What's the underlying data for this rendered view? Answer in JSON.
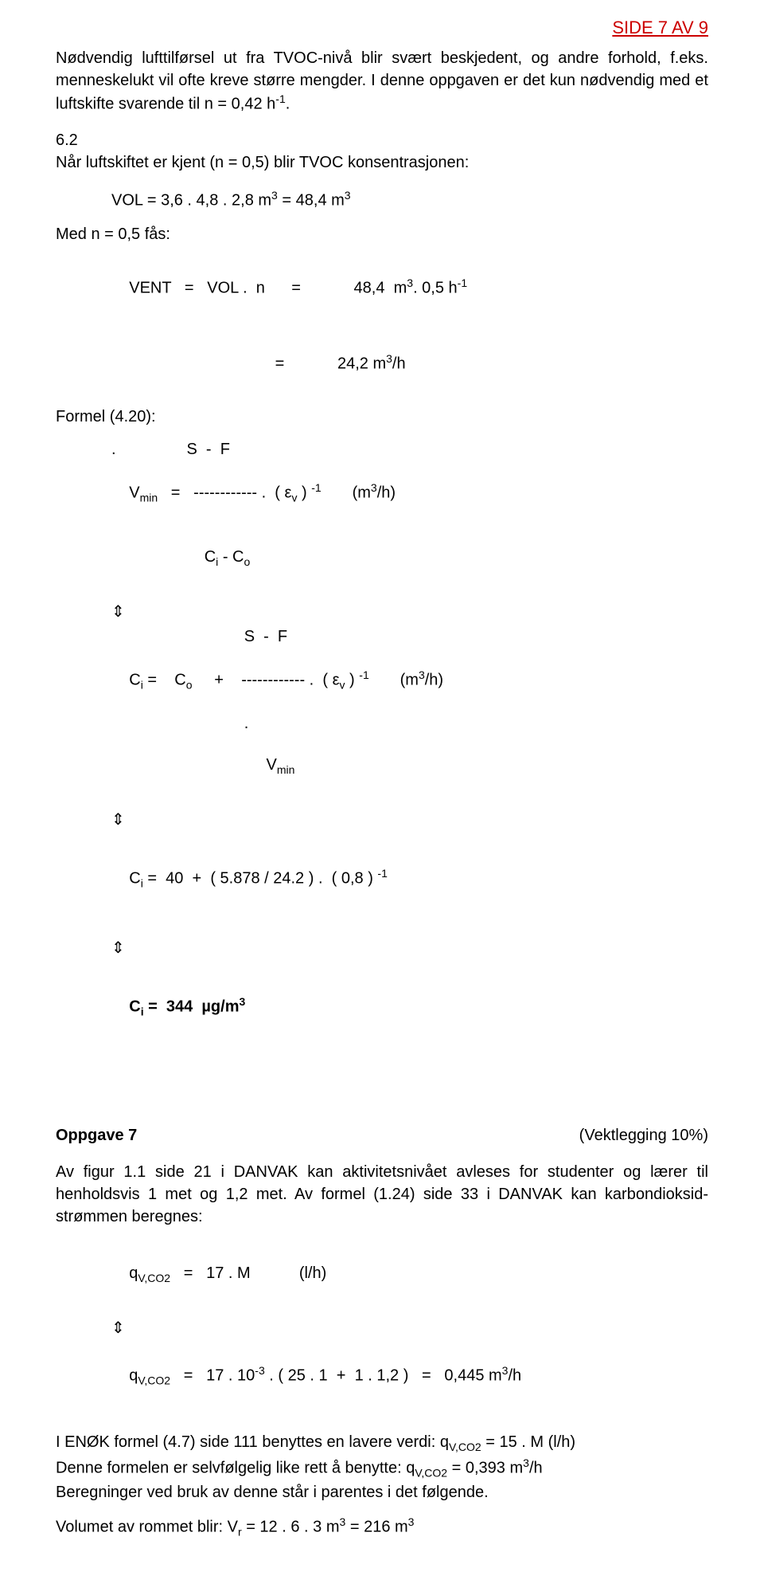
{
  "page_label": "SIDE 7 AV 9",
  "p1": "Nødvendig lufttilførsel ut fra TVOC-nivå blir svært beskjedent, og andre forhold, f.eks. menneskelukt vil ofte kreve større mengder.  I denne oppgaven er det kun nødvendig med et luftskifte svarende til  n = 0,42 h",
  "p1_sup": "-1",
  "p1_end": ".",
  "sec62_a": "6.2",
  "sec62_b": "Når luftskiftet er kjent (n = 0,5) blir TVOC konsentrasjonen:",
  "vol_line_a": "VOL  =   3,6 . 4,8 . 2,8 m",
  "vol_line_b": " = 48,4  m",
  "med_line": "Med n = 0,5 fås:",
  "vent_line_a": "VENT   =   VOL .  n      =            48,4  m",
  "vent_line_b": ". 0,5 h",
  "vent_line2": "                                 =            24,2 m",
  "vent_line2_b": "/h",
  "formel_label": "Formel (4.20):",
  "f1_l1": ".                S  -  F",
  "f1_l2a": "V",
  "f1_l2b": "   =   ------------ .  ( ε",
  "f1_l2c": " ) ",
  "f1_l2d": "       (m",
  "f1_l2e": "/h)",
  "f1_l3a": "                 C",
  "f1_l3b": " - C",
  "f2_l1": "                              S  -  F",
  "f2_l2a": "C",
  "f2_l2b": " =    C",
  "f2_l2c": "     +    ------------ .  ( ε",
  "f2_l2d": " ) ",
  "f2_l2e": "       (m",
  "f2_l2f": "/h)",
  "f2_l3": "                              .",
  "f2_l4a": "                               V",
  "f3_a": "C",
  "f3_b": " =  40  +  ( 5.878 / 24.2 ) .  ( 0,8 ) ",
  "f4_a": "C",
  "f4_b": " =  344  µg/m",
  "opp7": "Oppgave 7",
  "opp7_weight": "(Vektlegging 10%)",
  "p7": "Av figur 1.1 side 21 i DANVAK kan aktivitetsnivået avleses for studenter og lærer til henholdsvis 1 met og 1,2 met.  Av formel (1.24) side 33 i DANVAK kan karbondioksid-strømmen beregnes:",
  "q1_a": "q",
  "q1_b": "   =   17 . M           (l/h)",
  "q2_a": "q",
  "q2_b": "   =   17 . 10",
  "q2_c": " . ( 25 . 1  +  1 . 1,2 )   =   0,445 m",
  "q2_d": "/h",
  "enok1_a": "I ENØK formel (4.7) side 111 benyttes en lavere verdi:           q",
  "enok1_b": "   =   15 . M           (l/h)",
  "enok2_a": "Denne formelen er selvfølgelig like rett å benytte:                q",
  "enok2_b": "   =   0,393 m",
  "enok2_c": "/h",
  "enok3": "Beregninger ved bruk av denne står i parentes i det følgende.",
  "vr_a": "Volumet av rommet blir:           V",
  "vr_b": "         =  12 . 6 . 3 m",
  "vr_c": "  =  216 m",
  "sub_min": "min",
  "sub_i": "i",
  "sub_o": "o",
  "sub_v": "v",
  "sub_r": "r",
  "sub_vco2": "V,CO2",
  "sup_3": "3",
  "sup_neg1": "-1",
  "sup_neg3": "-3",
  "arrow_glyph": "⇕"
}
